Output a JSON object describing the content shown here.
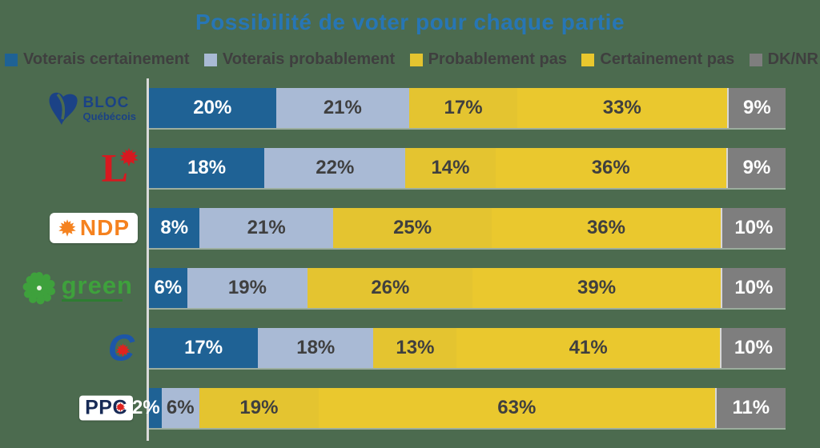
{
  "title": "Possibilité de voter pour chaque partie",
  "legend": [
    {
      "label": "Voterais certainement",
      "color": "#1F6295"
    },
    {
      "label": "Voterais probablement",
      "color": "#A9BAD5"
    },
    {
      "label": "Probablement pas",
      "color": "#E4C430"
    },
    {
      "label": "Certainement pas",
      "color": "#EAC82E"
    },
    {
      "label": "DK/NR",
      "color": "#7E7E7E"
    }
  ],
  "parties": {
    "bloc": {
      "logo_line1": "BLOC",
      "logo_line2": "Québécois"
    },
    "liberal": {
      "logo_letter": "L"
    },
    "ndp": {
      "logo_text": "NDP"
    },
    "green": {
      "logo_text": "green"
    },
    "conservative": {
      "logo_letter": "C"
    },
    "ppc": {
      "logo_text": "PPC"
    }
  },
  "chart_data": {
    "type": "bar",
    "orientation": "horizontal_stacked_percent",
    "title": "Possibilité de voter pour chaque partie",
    "categories": [
      "Bloc Québécois",
      "Liberal",
      "NDP",
      "Green",
      "Conservative",
      "PPC"
    ],
    "series": [
      {
        "name": "Voterais certainement",
        "color": "#1F6295",
        "label_color": "#FFFFFF",
        "values": [
          20,
          18,
          8,
          6,
          17,
          2
        ]
      },
      {
        "name": "Voterais probablement",
        "color": "#A9BAD5",
        "label_color": "#3F3F3F",
        "values": [
          21,
          22,
          21,
          19,
          18,
          6
        ]
      },
      {
        "name": "Probablement pas",
        "color": "#E4C430",
        "label_color": "#3F3F3F",
        "values": [
          17,
          14,
          25,
          26,
          13,
          19
        ]
      },
      {
        "name": "Certainement pas",
        "color": "#EAC82E",
        "label_color": "#3F3F3F",
        "values": [
          33,
          36,
          36,
          39,
          41,
          63
        ]
      },
      {
        "name": "DK/NR",
        "color": "#7E7E7E",
        "label_color": "#FFFFFF",
        "values": [
          9,
          9,
          10,
          10,
          10,
          11
        ]
      }
    ],
    "value_suffix": "%",
    "xlim": [
      0,
      100
    ],
    "legend_position": "top",
    "grid": false
  },
  "colors": {
    "background": "#4C6B4F",
    "title": "#2776B5",
    "legend_text": "#3F3F3F",
    "axis_line": "#D9D9D9"
  }
}
